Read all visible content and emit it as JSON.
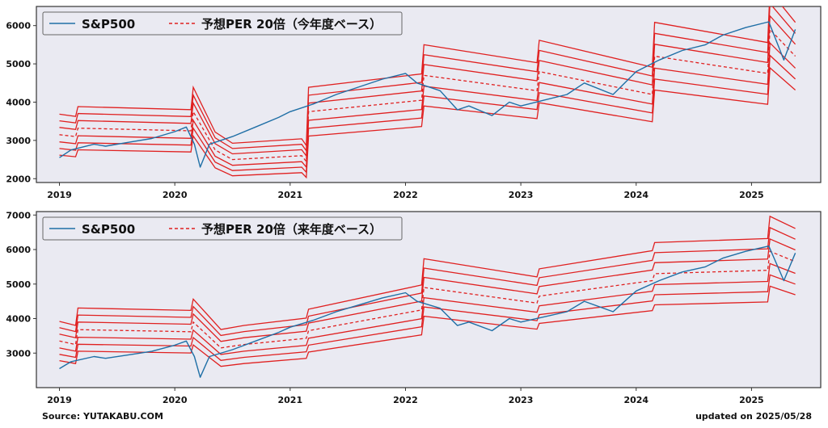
{
  "chart_data": [
    {
      "type": "line",
      "title": "",
      "xlabel": "",
      "ylabel": "",
      "xlim": [
        2018.8,
        2025.6
      ],
      "ylim": [
        1900,
        6500
      ],
      "x_ticks": [
        2019,
        2020,
        2021,
        2022,
        2023,
        2024,
        2025
      ],
      "y_ticks": [
        2000,
        3000,
        4000,
        5000,
        6000
      ],
      "grid": false,
      "legend": {
        "placement": "top-left"
      },
      "series": [
        {
          "name": "S&P500",
          "color": "#1f6fa6",
          "style": "solid",
          "x": [
            2019.0,
            2019.1,
            2019.3,
            2019.4,
            2019.6,
            2019.8,
            2020.0,
            2020.1,
            2020.17,
            2020.22,
            2020.3,
            2020.5,
            2020.7,
            2020.9,
            2021.0,
            2021.2,
            2021.4,
            2021.6,
            2021.8,
            2022.0,
            2022.1,
            2022.3,
            2022.45,
            2022.55,
            2022.75,
            2022.9,
            2023.0,
            2023.2,
            2023.4,
            2023.55,
            2023.8,
            2024.0,
            2024.2,
            2024.4,
            2024.6,
            2024.75,
            2024.95,
            2025.15,
            2025.28,
            2025.38
          ],
          "y": [
            2550,
            2750,
            2900,
            2850,
            2950,
            3050,
            3230,
            3350,
            2900,
            2300,
            2900,
            3100,
            3350,
            3600,
            3750,
            3950,
            4200,
            4400,
            4600,
            4750,
            4500,
            4300,
            3800,
            3900,
            3650,
            4000,
            3900,
            4050,
            4200,
            4500,
            4200,
            4800,
            5100,
            5350,
            5500,
            5750,
            5950,
            6100,
            5100,
            5900
          ]
        },
        {
          "name": "予想PER 20倍（今年度ベース）",
          "color": "#e02020",
          "style": "dashed",
          "x": [
            2019.0,
            2019.14,
            2019.16,
            2020.14,
            2020.16,
            2020.35,
            2020.5,
            2021.1,
            2021.14,
            2021.16,
            2022.14,
            2022.16,
            2023.14,
            2023.16,
            2024.14,
            2024.16,
            2025.14,
            2025.16,
            2025.38
          ],
          "y": [
            3150,
            3100,
            3320,
            3250,
            3750,
            2750,
            2500,
            2600,
            2450,
            3750,
            4050,
            4700,
            4300,
            4800,
            4200,
            5200,
            4750,
            5900,
            5200
          ]
        }
      ]
    },
    {
      "type": "line",
      "title": "",
      "xlabel": "",
      "ylabel": "",
      "xlim": [
        2018.8,
        2025.6
      ],
      "ylim": [
        2000,
        7100
      ],
      "x_ticks": [
        2019,
        2020,
        2021,
        2022,
        2023,
        2024,
        2025
      ],
      "y_ticks": [
        3000,
        4000,
        5000,
        6000,
        7000
      ],
      "grid": false,
      "legend": {
        "placement": "top-left"
      },
      "series": [
        {
          "name": "S&P500",
          "color": "#1f6fa6",
          "style": "solid",
          "x": [
            2019.0,
            2019.1,
            2019.3,
            2019.4,
            2019.6,
            2019.8,
            2020.0,
            2020.1,
            2020.17,
            2020.22,
            2020.3,
            2020.5,
            2020.7,
            2020.9,
            2021.0,
            2021.2,
            2021.4,
            2021.6,
            2021.8,
            2022.0,
            2022.1,
            2022.3,
            2022.45,
            2022.55,
            2022.75,
            2022.9,
            2023.0,
            2023.2,
            2023.4,
            2023.55,
            2023.8,
            2024.0,
            2024.2,
            2024.4,
            2024.6,
            2024.75,
            2024.95,
            2025.15,
            2025.28,
            2025.38
          ],
          "y": [
            2550,
            2750,
            2900,
            2850,
            2950,
            3050,
            3230,
            3350,
            2900,
            2300,
            2900,
            3100,
            3350,
            3600,
            3750,
            3950,
            4200,
            4400,
            4600,
            4750,
            4500,
            4300,
            3800,
            3900,
            3650,
            4000,
            3900,
            4050,
            4200,
            4500,
            4200,
            4800,
            5100,
            5350,
            5500,
            5750,
            5950,
            6100,
            5100,
            5900
          ]
        },
        {
          "name": "予想PER 20倍（来年度ベース）",
          "color": "#e02020",
          "style": "dashed",
          "x": [
            2019.0,
            2019.14,
            2019.16,
            2020.14,
            2020.16,
            2020.4,
            2020.6,
            2021.14,
            2021.16,
            2022.14,
            2022.16,
            2023.14,
            2023.16,
            2024.14,
            2024.16,
            2025.14,
            2025.16,
            2025.38
          ],
          "y": [
            3350,
            3250,
            3680,
            3620,
            3900,
            3150,
            3250,
            3430,
            3650,
            4250,
            4900,
            4450,
            4650,
            5100,
            5300,
            5400,
            5950,
            5650
          ]
        }
      ]
    }
  ],
  "footer": {
    "source": "Source: YUTAKABU.COM",
    "updated": "updated on 2025/05/28"
  }
}
